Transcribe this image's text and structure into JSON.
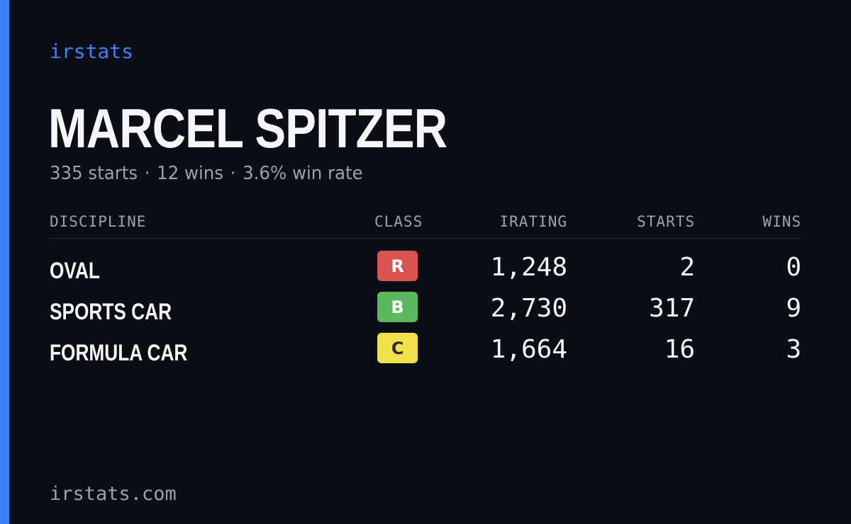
{
  "brand": "irstats",
  "driver": {
    "name": "MARCEL SPITZER",
    "starts": "335 starts",
    "wins": "12 wins",
    "win_rate": "3.6% win rate",
    "separator": "·"
  },
  "table": {
    "headers": {
      "discipline": "DISCIPLINE",
      "class": "CLASS",
      "irating": "IRATING",
      "starts": "STARTS",
      "wins": "WINS"
    },
    "rows": [
      {
        "discipline": "OVAL",
        "class": "R",
        "class_color": "#d9534f",
        "class_text_color": "#ffffff",
        "irating": "1,248",
        "starts": "2",
        "wins": "0"
      },
      {
        "discipline": "SPORTS CAR",
        "class": "B",
        "class_color": "#5cb85c",
        "class_text_color": "#ffffff",
        "irating": "2,730",
        "starts": "317",
        "wins": "9"
      },
      {
        "discipline": "FORMULA CAR",
        "class": "C",
        "class_color": "#f0e14a",
        "class_text_color": "#2b2b2b",
        "irating": "1,664",
        "starts": "16",
        "wins": "3"
      }
    ]
  },
  "footer": "irstats.com",
  "colors": {
    "accent": "#3b82f6",
    "background": "#0b0e15",
    "muted": "#9aa2b1"
  }
}
